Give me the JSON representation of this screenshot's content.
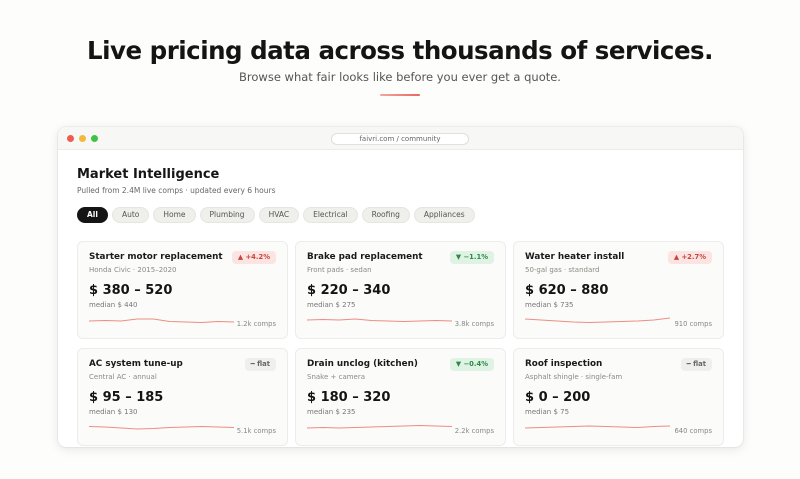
{
  "hero": {
    "title": "Live pricing data across thousands of services.",
    "subtitle": "Browse what fair looks like before you ever get a quote."
  },
  "window": {
    "url": "faivri.com / community",
    "panel_title": "Market Intelligence",
    "panel_subtitle": "Pulled from 2.4M live comps · updated every 6 hours"
  },
  "filters": [
    "All",
    "Auto",
    "Home",
    "Plumbing",
    "HVAC",
    "Electrical",
    "Roofing",
    "Appliances"
  ],
  "active_filter": "All",
  "colors": {
    "accent": "#e8685e",
    "up": "#c8463d",
    "down": "#2b8a47"
  },
  "cards": [
    {
      "title": "Starter motor replacement",
      "subtitle": "Honda Civic · 2015–2020",
      "trend": "up",
      "badge": "▲ +4.2%",
      "price": "$ 380 – 520",
      "median": "median $ 440",
      "comps": "1.2k comps",
      "spark": [
        0.5,
        0.45,
        0.5,
        0.3,
        0.3,
        0.55,
        0.6,
        0.65,
        0.55,
        0.6
      ]
    },
    {
      "title": "Brake pad replacement",
      "subtitle": "Front pads · sedan",
      "trend": "down",
      "badge": "▼ −1.1%",
      "price": "$ 220 – 340",
      "median": "median $ 275",
      "comps": "3.8k comps",
      "spark": [
        0.4,
        0.35,
        0.4,
        0.3,
        0.45,
        0.5,
        0.55,
        0.5,
        0.45,
        0.5
      ]
    },
    {
      "title": "Water heater install",
      "subtitle": "50-gal gas · standard",
      "trend": "up",
      "badge": "▲ +2.7%",
      "price": "$ 620 – 880",
      "median": "median $ 735",
      "comps": "910 comps",
      "spark": [
        0.3,
        0.4,
        0.5,
        0.6,
        0.65,
        0.6,
        0.55,
        0.5,
        0.4,
        0.2
      ]
    },
    {
      "title": "AC system tune-up",
      "subtitle": "Central AC · annual",
      "trend": "flat",
      "badge": "━ flat",
      "price": "$ 95 – 185",
      "median": "median $ 130",
      "comps": "5.1k comps",
      "spark": [
        0.35,
        0.4,
        0.5,
        0.6,
        0.55,
        0.45,
        0.4,
        0.35,
        0.4,
        0.45
      ]
    },
    {
      "title": "Drain unclog (kitchen)",
      "subtitle": "Snake + camera",
      "trend": "down",
      "badge": "▼ −0.4%",
      "price": "$ 180 – 320",
      "median": "median $ 235",
      "comps": "2.2k comps",
      "spark": [
        0.5,
        0.45,
        0.5,
        0.45,
        0.4,
        0.35,
        0.3,
        0.25,
        0.3,
        0.35
      ]
    },
    {
      "title": "Roof inspection",
      "subtitle": "Asphalt shingle · single-fam",
      "trend": "flat",
      "badge": "━ flat",
      "price": "$ 0 – 200",
      "median": "median $ 75",
      "comps": "640 comps",
      "spark": [
        0.5,
        0.45,
        0.4,
        0.35,
        0.3,
        0.35,
        0.4,
        0.45,
        0.35,
        0.3
      ]
    }
  ]
}
